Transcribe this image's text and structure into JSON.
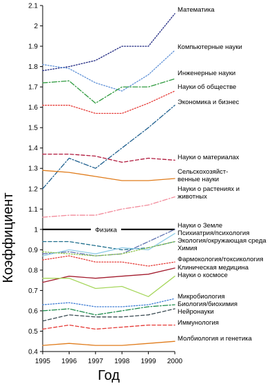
{
  "chart_data": {
    "type": "line",
    "title": "",
    "xlabel": "Год",
    "ylabel": "Коэффициент",
    "x": [
      1995,
      1996,
      1997,
      1998,
      1999,
      2000
    ],
    "xticks": [
      "1995",
      "1996",
      "1997",
      "1998",
      "1999",
      "2000"
    ],
    "ylim": [
      0.4,
      2.1
    ],
    "yticks": [
      "0.4",
      "0.5",
      "0.6",
      "0.7",
      "0.8",
      "0.9",
      "1",
      "1.1",
      "1.2",
      "1.3",
      "1.4",
      "1.5",
      "1.6",
      "1.7",
      "1.8",
      "1.9",
      "2",
      "2.1"
    ],
    "grid": false,
    "reference_line": {
      "y": 1.0,
      "label": "Физика",
      "color": "#000000"
    },
    "series": [
      {
        "name": "Математика",
        "values": [
          1.78,
          1.8,
          1.83,
          1.9,
          1.9,
          2.06
        ],
        "color": "#1a237e",
        "dash": "dot"
      },
      {
        "name": "Компьютерные науки",
        "values": [
          1.81,
          1.79,
          1.72,
          1.68,
          1.76,
          1.88
        ],
        "color": "#5c8fd6",
        "dash": "dot"
      },
      {
        "name": "Инженерные науки",
        "values": [
          1.72,
          1.73,
          1.62,
          1.7,
          1.7,
          1.74
        ],
        "color": "#2e9a3e",
        "dash": "dashdot"
      },
      {
        "name": "Науки об обществе",
        "values": [
          1.61,
          1.61,
          1.57,
          1.57,
          1.62,
          1.68
        ],
        "color": "#e53935",
        "dash": "dot"
      },
      {
        "name": "Экономика и бизнес",
        "values": [
          1.2,
          1.35,
          1.3,
          1.4,
          1.5,
          1.61
        ],
        "color": "#1e5f8e",
        "dash": "dashdot"
      },
      {
        "name": "Науки о материалах",
        "values": [
          1.37,
          1.37,
          1.36,
          1.33,
          1.35,
          1.34
        ],
        "color": "#b0183c",
        "dash": "dash"
      },
      {
        "name": "Сельскохозяйственные науки",
        "values": [
          1.29,
          1.28,
          1.26,
          1.24,
          1.24,
          1.25
        ],
        "color": "#e07b1a",
        "dash": "solid"
      },
      {
        "name": "Науки о растениях и животных",
        "values": [
          1.06,
          1.07,
          1.07,
          1.1,
          1.12,
          1.16
        ],
        "color": "#f28b9b",
        "dash": "dashdot"
      },
      {
        "name": "Науки о Земле",
        "values": [
          0.88,
          0.89,
          0.87,
          0.88,
          0.94,
          1.0
        ],
        "color": "#5b6fae",
        "dash": "dashdot"
      },
      {
        "name": "Психиатрия/психология",
        "values": [
          0.94,
          0.94,
          0.92,
          0.9,
          0.91,
          0.94
        ],
        "color": "#1e6e8c",
        "dash": "dash"
      },
      {
        "name": "Экология/окружающая среда",
        "values": [
          0.87,
          0.9,
          0.88,
          0.91,
          0.9,
          0.98
        ],
        "color": "#8ecae6",
        "dash": "solid"
      },
      {
        "name": "Химия",
        "values": [
          0.89,
          0.88,
          0.87,
          0.88,
          0.91,
          0.94
        ],
        "color": "#8bc34a",
        "dash": "dot"
      },
      {
        "name": "Фармокология/токсикология",
        "values": [
          0.85,
          0.87,
          0.84,
          0.84,
          0.82,
          0.84
        ],
        "color": "#e53935",
        "dash": "dot"
      },
      {
        "name": "Клиническая медицина",
        "values": [
          0.74,
          0.77,
          0.76,
          0.77,
          0.78,
          0.81
        ],
        "color": "#a31c2e",
        "dash": "solid"
      },
      {
        "name": "Науки о космосе",
        "values": [
          0.76,
          0.76,
          0.71,
          0.72,
          0.67,
          0.77
        ],
        "color": "#a5d65a",
        "dash": "solid"
      },
      {
        "name": "Микробиология",
        "values": [
          0.63,
          0.64,
          0.62,
          0.62,
          0.63,
          0.66
        ],
        "color": "#3b7bd4",
        "dash": "dot"
      },
      {
        "name": "Биология/биохимия",
        "values": [
          0.6,
          0.61,
          0.58,
          0.6,
          0.62,
          0.63
        ],
        "color": "#1b8a4a",
        "dash": "dashdot"
      },
      {
        "name": "Нейронауки",
        "values": [
          0.55,
          0.58,
          0.57,
          0.57,
          0.58,
          0.61
        ],
        "color": "#37474f",
        "dash": "dash"
      },
      {
        "name": "Иммунология",
        "values": [
          0.51,
          0.53,
          0.51,
          0.52,
          0.53,
          0.53
        ],
        "color": "#e53935",
        "dash": "dash"
      },
      {
        "name": "Молбиология и генетика",
        "values": [
          0.43,
          0.44,
          0.43,
          0.43,
          0.44,
          0.45
        ],
        "color": "#e07b1a",
        "dash": "solid"
      }
    ],
    "label_lines": [
      {
        "series": 0,
        "lines": [
          "Математика"
        ]
      },
      {
        "series": 1,
        "lines": [
          "Компьютерные науки"
        ]
      },
      {
        "series": 2,
        "lines": [
          "Инженерные науки"
        ]
      },
      {
        "series": 3,
        "lines": [
          "Науки об обществе"
        ]
      },
      {
        "series": 4,
        "lines": [
          "Экономика и бизнес"
        ]
      },
      {
        "series": 5,
        "lines": [
          "Науки о материалах"
        ]
      },
      {
        "series": 6,
        "lines": [
          "Сельскохозяйст-",
          "венные науки"
        ]
      },
      {
        "series": 7,
        "lines": [
          "Науки о растениях и",
          "животных"
        ]
      },
      {
        "series": 8,
        "lines": [
          "Науки о Земле"
        ]
      },
      {
        "series": 9,
        "lines": [
          "Психиатрия/психология"
        ]
      },
      {
        "series": 10,
        "lines": [
          "Экология/окружающая среда"
        ]
      },
      {
        "series": 11,
        "lines": [
          "Химия"
        ]
      },
      {
        "series": 12,
        "lines": [
          "Фармокология/токсикология"
        ]
      },
      {
        "series": 13,
        "lines": [
          "Клиническая медицина"
        ]
      },
      {
        "series": 14,
        "lines": [
          "Науки о космосе"
        ]
      },
      {
        "series": 15,
        "lines": [
          "Микробиология"
        ]
      },
      {
        "series": 16,
        "lines": [
          "Биология/биохимия"
        ]
      },
      {
        "series": 17,
        "lines": [
          "Нейронауки"
        ]
      },
      {
        "series": 18,
        "lines": [
          "Иммунология"
        ]
      },
      {
        "series": 19,
        "lines": [
          "Молбиология и генетика"
        ]
      }
    ]
  }
}
